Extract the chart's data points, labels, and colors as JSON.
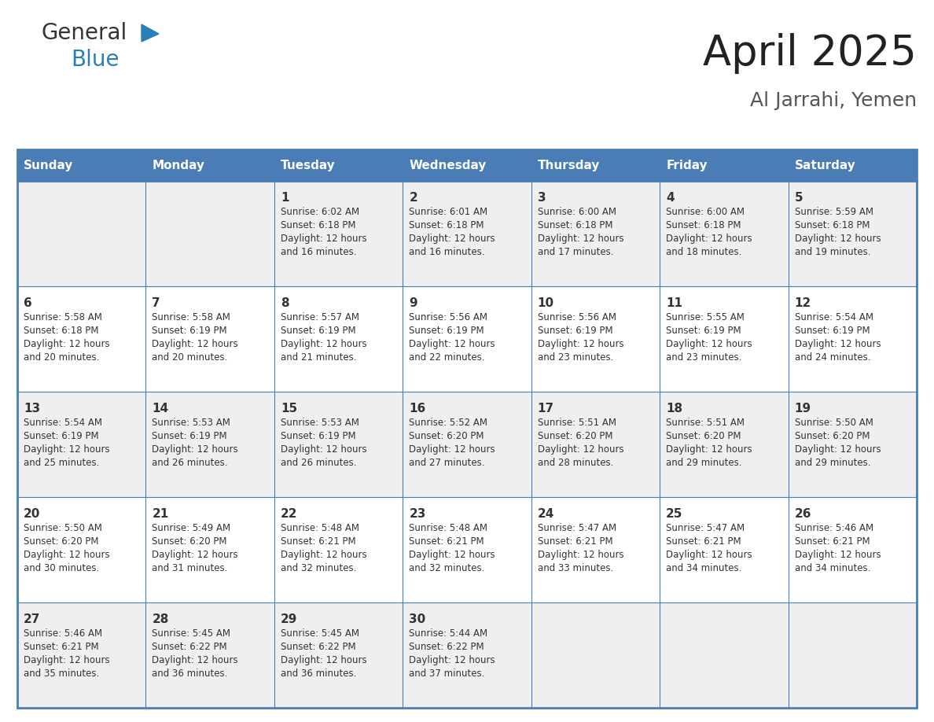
{
  "title": "April 2025",
  "subtitle": "Al Jarrahi, Yemen",
  "header_color": "#4a7db5",
  "header_text_color": "#ffffff",
  "cell_bg_white": "#ffffff",
  "cell_bg_gray": "#efefef",
  "border_color": "#4a7db5",
  "text_color": "#333333",
  "days_of_week": [
    "Sunday",
    "Monday",
    "Tuesday",
    "Wednesday",
    "Thursday",
    "Friday",
    "Saturday"
  ],
  "weeks": [
    [
      {
        "day": "",
        "info": ""
      },
      {
        "day": "",
        "info": ""
      },
      {
        "day": "1",
        "info": "Sunrise: 6:02 AM\nSunset: 6:18 PM\nDaylight: 12 hours\nand 16 minutes."
      },
      {
        "day": "2",
        "info": "Sunrise: 6:01 AM\nSunset: 6:18 PM\nDaylight: 12 hours\nand 16 minutes."
      },
      {
        "day": "3",
        "info": "Sunrise: 6:00 AM\nSunset: 6:18 PM\nDaylight: 12 hours\nand 17 minutes."
      },
      {
        "day": "4",
        "info": "Sunrise: 6:00 AM\nSunset: 6:18 PM\nDaylight: 12 hours\nand 18 minutes."
      },
      {
        "day": "5",
        "info": "Sunrise: 5:59 AM\nSunset: 6:18 PM\nDaylight: 12 hours\nand 19 minutes."
      }
    ],
    [
      {
        "day": "6",
        "info": "Sunrise: 5:58 AM\nSunset: 6:18 PM\nDaylight: 12 hours\nand 20 minutes."
      },
      {
        "day": "7",
        "info": "Sunrise: 5:58 AM\nSunset: 6:19 PM\nDaylight: 12 hours\nand 20 minutes."
      },
      {
        "day": "8",
        "info": "Sunrise: 5:57 AM\nSunset: 6:19 PM\nDaylight: 12 hours\nand 21 minutes."
      },
      {
        "day": "9",
        "info": "Sunrise: 5:56 AM\nSunset: 6:19 PM\nDaylight: 12 hours\nand 22 minutes."
      },
      {
        "day": "10",
        "info": "Sunrise: 5:56 AM\nSunset: 6:19 PM\nDaylight: 12 hours\nand 23 minutes."
      },
      {
        "day": "11",
        "info": "Sunrise: 5:55 AM\nSunset: 6:19 PM\nDaylight: 12 hours\nand 23 minutes."
      },
      {
        "day": "12",
        "info": "Sunrise: 5:54 AM\nSunset: 6:19 PM\nDaylight: 12 hours\nand 24 minutes."
      }
    ],
    [
      {
        "day": "13",
        "info": "Sunrise: 5:54 AM\nSunset: 6:19 PM\nDaylight: 12 hours\nand 25 minutes."
      },
      {
        "day": "14",
        "info": "Sunrise: 5:53 AM\nSunset: 6:19 PM\nDaylight: 12 hours\nand 26 minutes."
      },
      {
        "day": "15",
        "info": "Sunrise: 5:53 AM\nSunset: 6:19 PM\nDaylight: 12 hours\nand 26 minutes."
      },
      {
        "day": "16",
        "info": "Sunrise: 5:52 AM\nSunset: 6:20 PM\nDaylight: 12 hours\nand 27 minutes."
      },
      {
        "day": "17",
        "info": "Sunrise: 5:51 AM\nSunset: 6:20 PM\nDaylight: 12 hours\nand 28 minutes."
      },
      {
        "day": "18",
        "info": "Sunrise: 5:51 AM\nSunset: 6:20 PM\nDaylight: 12 hours\nand 29 minutes."
      },
      {
        "day": "19",
        "info": "Sunrise: 5:50 AM\nSunset: 6:20 PM\nDaylight: 12 hours\nand 29 minutes."
      }
    ],
    [
      {
        "day": "20",
        "info": "Sunrise: 5:50 AM\nSunset: 6:20 PM\nDaylight: 12 hours\nand 30 minutes."
      },
      {
        "day": "21",
        "info": "Sunrise: 5:49 AM\nSunset: 6:20 PM\nDaylight: 12 hours\nand 31 minutes."
      },
      {
        "day": "22",
        "info": "Sunrise: 5:48 AM\nSunset: 6:21 PM\nDaylight: 12 hours\nand 32 minutes."
      },
      {
        "day": "23",
        "info": "Sunrise: 5:48 AM\nSunset: 6:21 PM\nDaylight: 12 hours\nand 32 minutes."
      },
      {
        "day": "24",
        "info": "Sunrise: 5:47 AM\nSunset: 6:21 PM\nDaylight: 12 hours\nand 33 minutes."
      },
      {
        "day": "25",
        "info": "Sunrise: 5:47 AM\nSunset: 6:21 PM\nDaylight: 12 hours\nand 34 minutes."
      },
      {
        "day": "26",
        "info": "Sunrise: 5:46 AM\nSunset: 6:21 PM\nDaylight: 12 hours\nand 34 minutes."
      }
    ],
    [
      {
        "day": "27",
        "info": "Sunrise: 5:46 AM\nSunset: 6:21 PM\nDaylight: 12 hours\nand 35 minutes."
      },
      {
        "day": "28",
        "info": "Sunrise: 5:45 AM\nSunset: 6:22 PM\nDaylight: 12 hours\nand 36 minutes."
      },
      {
        "day": "29",
        "info": "Sunrise: 5:45 AM\nSunset: 6:22 PM\nDaylight: 12 hours\nand 36 minutes."
      },
      {
        "day": "30",
        "info": "Sunrise: 5:44 AM\nSunset: 6:22 PM\nDaylight: 12 hours\nand 37 minutes."
      },
      {
        "day": "",
        "info": ""
      },
      {
        "day": "",
        "info": ""
      },
      {
        "day": "",
        "info": ""
      }
    ]
  ],
  "row_bg_colors": [
    "#efefef",
    "#ffffff",
    "#efefef",
    "#ffffff",
    "#efefef"
  ],
  "logo_text_general": "General",
  "logo_text_blue": "Blue",
  "logo_color_general": "#333333",
  "logo_color_blue": "#2980b9",
  "logo_triangle_color": "#2980b9",
  "title_fontsize": 38,
  "subtitle_fontsize": 18,
  "header_fontsize": 11,
  "day_num_fontsize": 11,
  "info_fontsize": 8.5
}
